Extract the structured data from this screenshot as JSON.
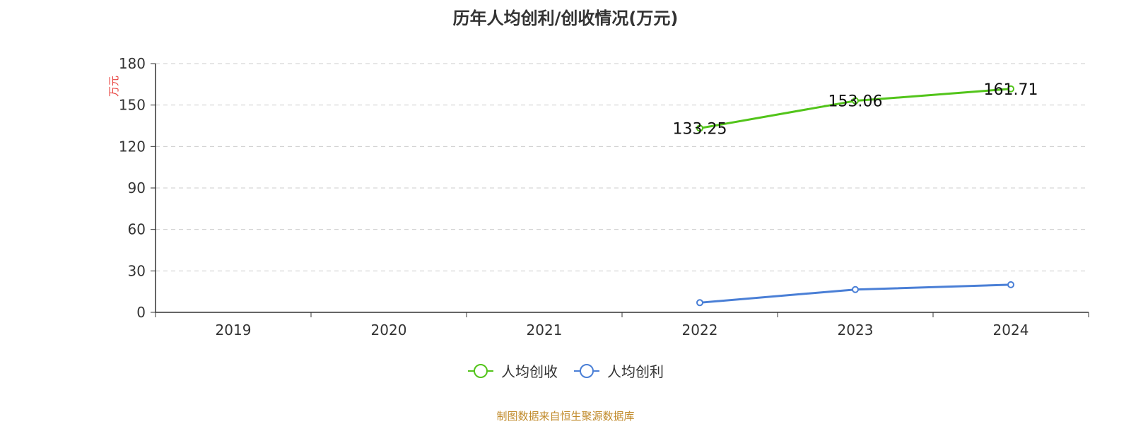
{
  "source_note": "制图数据来自恒生聚源数据库",
  "chart_data": {
    "type": "line",
    "title": "历年人均创利/创收情况(万元)",
    "ylabel": "万元",
    "xlabel": "",
    "categories": [
      "2019",
      "2020",
      "2021",
      "2022",
      "2023",
      "2024"
    ],
    "ylim": [
      0,
      180
    ],
    "yticks": [
      0,
      30,
      60,
      90,
      120,
      150,
      180
    ],
    "grid": true,
    "legend_position": "bottom-center",
    "series": [
      {
        "name": "人均创收",
        "color": "#52c41a",
        "values": [
          null,
          null,
          null,
          133.25,
          153.06,
          161.71
        ],
        "labels": [
          "",
          "",
          "",
          "133.25",
          "153.06",
          "161.71"
        ]
      },
      {
        "name": "人均创利",
        "color": "#4a7fd6",
        "values": [
          null,
          null,
          null,
          7.0,
          16.5,
          20.0
        ],
        "labels": [
          "",
          "",
          "",
          "",
          "",
          ""
        ]
      }
    ]
  }
}
